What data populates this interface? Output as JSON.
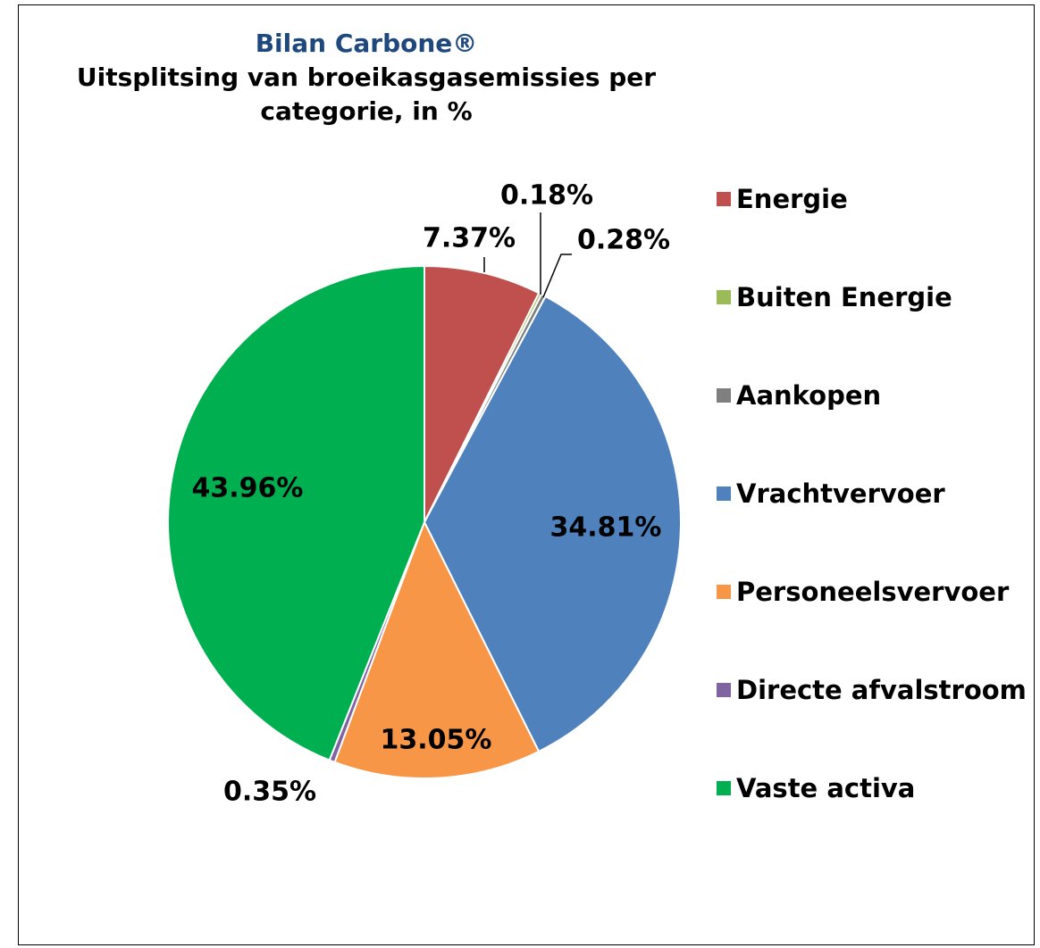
{
  "chart_data": {
    "type": "pie",
    "title": "Bilan Carbone®",
    "subtitle": "Uitsplitsing van broeikasgasemissies per categorie, in %",
    "categories": [
      "Energie",
      "Buiten Energie",
      "Aankopen",
      "Vrachtvervoer",
      "Personeelsvervoer",
      "Directe afvalstroom",
      "Vaste activa"
    ],
    "values": [
      7.37,
      0.18,
      0.28,
      34.81,
      13.05,
      0.35,
      43.96
    ],
    "value_labels": [
      "7.37%",
      "0.18%",
      "0.28%",
      "34.81%",
      "13.05%",
      "0.35%",
      "43.96%"
    ],
    "colors": [
      "#c0504d",
      "#9bbb59",
      "#7f7f7f",
      "#4f81bd",
      "#f79646",
      "#8064a2",
      "#00b050"
    ],
    "legend": "right"
  }
}
